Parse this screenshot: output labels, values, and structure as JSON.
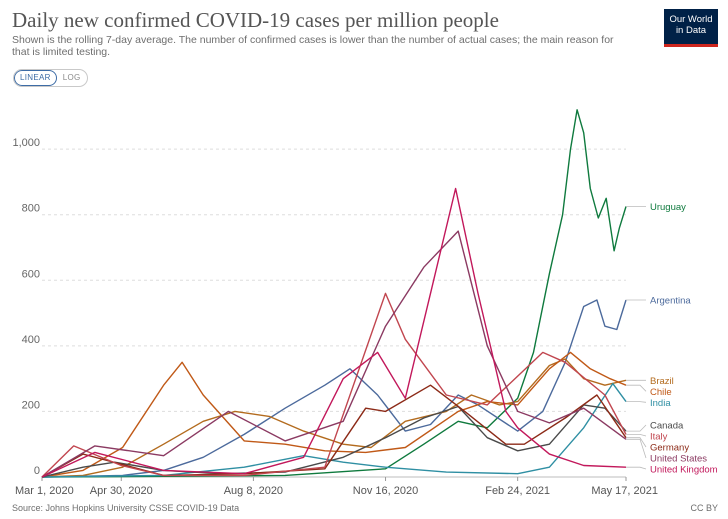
{
  "header": {
    "title": "Daily new confirmed COVID-19 cases per million people",
    "subtitle": "Shown is the rolling 7-day average. The number of confirmed cases is lower than the number of actual cases; the main reason for that is limited testing."
  },
  "logo": {
    "line1": "Our World",
    "line2": "in Data",
    "bg": "#002147",
    "accent": "#ce261e"
  },
  "scale_toggle": {
    "options": [
      "LINEAR",
      "LOG"
    ],
    "selected": "LINEAR"
  },
  "footer": {
    "source": "Source: Johns Hopkins University CSSE COVID-19 Data",
    "license": "CC BY"
  },
  "chart_data": {
    "type": "line",
    "title": "Daily new confirmed COVID-19 cases per million people",
    "subtitle": "Shown is the rolling 7-day average. The number of confirmed cases is lower than the number of actual cases; the main reason for that is limited testing.",
    "xlabel": "",
    "ylabel": "",
    "x_range": [
      "2020-03-01",
      "2021-05-17"
    ],
    "ylim": [
      0,
      1150
    ],
    "x_ticks": [
      {
        "date": "2020-03-01",
        "label": "Mar 1, 2020"
      },
      {
        "date": "2020-04-30",
        "label": "Apr 30, 2020"
      },
      {
        "date": "2020-08-08",
        "label": "Aug 8, 2020"
      },
      {
        "date": "2020-11-16",
        "label": "Nov 16, 2020"
      },
      {
        "date": "2021-02-24",
        "label": "Feb 24, 2021"
      },
      {
        "date": "2021-05-17",
        "label": "May 17, 2021"
      }
    ],
    "y_ticks": [
      0,
      200,
      400,
      600,
      800,
      1000
    ],
    "y_tick_labels": [
      "0",
      "200",
      "400",
      "600",
      "800",
      "1,000"
    ],
    "grid": "horizontal dashed",
    "legend": "labels at right end of lines",
    "series": [
      {
        "name": "Uruguay",
        "color": "#0f7a3e",
        "points": [
          [
            "2020-03-01",
            0
          ],
          [
            "2020-06-01",
            2
          ],
          [
            "2020-09-01",
            5
          ],
          [
            "2020-11-16",
            25
          ],
          [
            "2020-12-15",
            100
          ],
          [
            "2021-01-10",
            170
          ],
          [
            "2021-02-01",
            150
          ],
          [
            "2021-02-24",
            240
          ],
          [
            "2021-03-08",
            380
          ],
          [
            "2021-03-20",
            620
          ],
          [
            "2021-03-30",
            800
          ],
          [
            "2021-04-05",
            1000
          ],
          [
            "2021-04-10",
            1120
          ],
          [
            "2021-04-15",
            1050
          ],
          [
            "2021-04-20",
            880
          ],
          [
            "2021-04-26",
            790
          ],
          [
            "2021-05-02",
            850
          ],
          [
            "2021-05-08",
            690
          ],
          [
            "2021-05-12",
            760
          ],
          [
            "2021-05-17",
            825
          ]
        ]
      },
      {
        "name": "Argentina",
        "color": "#4c6a9c",
        "points": [
          [
            "2020-03-01",
            0
          ],
          [
            "2020-05-01",
            5
          ],
          [
            "2020-06-01",
            20
          ],
          [
            "2020-07-01",
            60
          ],
          [
            "2020-08-01",
            130
          ],
          [
            "2020-09-01",
            210
          ],
          [
            "2020-10-01",
            280
          ],
          [
            "2020-10-20",
            330
          ],
          [
            "2020-11-10",
            250
          ],
          [
            "2020-12-01",
            140
          ],
          [
            "2020-12-20",
            160
          ],
          [
            "2021-01-10",
            250
          ],
          [
            "2021-01-25",
            220
          ],
          [
            "2021-02-24",
            140
          ],
          [
            "2021-03-15",
            200
          ],
          [
            "2021-04-01",
            350
          ],
          [
            "2021-04-15",
            520
          ],
          [
            "2021-04-25",
            540
          ],
          [
            "2021-05-01",
            460
          ],
          [
            "2021-05-10",
            450
          ],
          [
            "2021-05-17",
            540
          ]
        ]
      },
      {
        "name": "Brazil",
        "color": "#b36b1e",
        "points": [
          [
            "2020-03-01",
            0
          ],
          [
            "2020-04-01",
            5
          ],
          [
            "2020-05-01",
            30
          ],
          [
            "2020-06-01",
            100
          ],
          [
            "2020-07-01",
            170
          ],
          [
            "2020-07-25",
            200
          ],
          [
            "2020-08-20",
            185
          ],
          [
            "2020-09-15",
            140
          ],
          [
            "2020-10-15",
            100
          ],
          [
            "2020-11-05",
            90
          ],
          [
            "2020-12-01",
            170
          ],
          [
            "2021-01-01",
            200
          ],
          [
            "2021-01-20",
            250
          ],
          [
            "2021-02-10",
            220
          ],
          [
            "2021-02-24",
            230
          ],
          [
            "2021-03-20",
            340
          ],
          [
            "2021-04-01",
            360
          ],
          [
            "2021-04-15",
            300
          ],
          [
            "2021-05-01",
            280
          ],
          [
            "2021-05-17",
            295
          ]
        ]
      },
      {
        "name": "Chile",
        "color": "#c05917",
        "points": [
          [
            "2020-03-01",
            0
          ],
          [
            "2020-04-01",
            20
          ],
          [
            "2020-05-01",
            90
          ],
          [
            "2020-06-01",
            280
          ],
          [
            "2020-06-15",
            350
          ],
          [
            "2020-07-01",
            250
          ],
          [
            "2020-08-01",
            110
          ],
          [
            "2020-09-01",
            100
          ],
          [
            "2020-10-01",
            80
          ],
          [
            "2020-11-01",
            75
          ],
          [
            "2020-12-01",
            90
          ],
          [
            "2021-01-10",
            200
          ],
          [
            "2021-02-01",
            230
          ],
          [
            "2021-02-24",
            220
          ],
          [
            "2021-03-20",
            330
          ],
          [
            "2021-04-05",
            380
          ],
          [
            "2021-04-20",
            330
          ],
          [
            "2021-05-05",
            300
          ],
          [
            "2021-05-17",
            280
          ]
        ]
      },
      {
        "name": "India",
        "color": "#2f8fa3",
        "points": [
          [
            "2020-03-01",
            0
          ],
          [
            "2020-06-01",
            5
          ],
          [
            "2020-08-01",
            30
          ],
          [
            "2020-09-15",
            65
          ],
          [
            "2020-10-15",
            45
          ],
          [
            "2020-11-16",
            30
          ],
          [
            "2021-01-01",
            15
          ],
          [
            "2021-02-24",
            10
          ],
          [
            "2021-03-20",
            30
          ],
          [
            "2021-04-15",
            150
          ],
          [
            "2021-05-07",
            285
          ],
          [
            "2021-05-17",
            230
          ]
        ]
      },
      {
        "name": "Canada",
        "color": "#4a4a4a",
        "points": [
          [
            "2020-03-01",
            0
          ],
          [
            "2020-04-01",
            30
          ],
          [
            "2020-04-25",
            45
          ],
          [
            "2020-06-01",
            20
          ],
          [
            "2020-07-15",
            10
          ],
          [
            "2020-09-01",
            15
          ],
          [
            "2020-10-15",
            60
          ],
          [
            "2020-11-16",
            120
          ],
          [
            "2020-12-15",
            180
          ],
          [
            "2021-01-10",
            215
          ],
          [
            "2021-02-01",
            120
          ],
          [
            "2021-02-24",
            80
          ],
          [
            "2021-03-20",
            100
          ],
          [
            "2021-04-15",
            220
          ],
          [
            "2021-05-01",
            210
          ],
          [
            "2021-05-17",
            140
          ]
        ]
      },
      {
        "name": "Germany",
        "color": "#8c2a17",
        "points": [
          [
            "2020-03-01",
            0
          ],
          [
            "2020-04-01",
            70
          ],
          [
            "2020-04-15",
            55
          ],
          [
            "2020-06-01",
            5
          ],
          [
            "2020-08-01",
            10
          ],
          [
            "2020-10-01",
            25
          ],
          [
            "2020-11-01",
            210
          ],
          [
            "2020-11-16",
            200
          ],
          [
            "2020-12-20",
            280
          ],
          [
            "2021-01-15",
            200
          ],
          [
            "2021-02-15",
            100
          ],
          [
            "2021-03-01",
            100
          ],
          [
            "2021-04-01",
            180
          ],
          [
            "2021-04-25",
            250
          ],
          [
            "2021-05-17",
            120
          ]
        ]
      },
      {
        "name": "Italy",
        "color": "#c1464f",
        "points": [
          [
            "2020-03-01",
            0
          ],
          [
            "2020-03-25",
            95
          ],
          [
            "2020-04-30",
            35
          ],
          [
            "2020-06-01",
            5
          ],
          [
            "2020-08-01",
            5
          ],
          [
            "2020-10-01",
            30
          ],
          [
            "2020-11-16",
            560
          ],
          [
            "2020-12-01",
            420
          ],
          [
            "2021-01-01",
            250
          ],
          [
            "2021-02-01",
            220
          ],
          [
            "2021-03-15",
            380
          ],
          [
            "2021-04-01",
            350
          ],
          [
            "2021-05-01",
            250
          ],
          [
            "2021-05-17",
            130
          ]
        ]
      },
      {
        "name": "United States",
        "color": "#8b3a62",
        "points": [
          [
            "2020-03-01",
            0
          ],
          [
            "2020-04-10",
            95
          ],
          [
            "2020-06-01",
            65
          ],
          [
            "2020-07-20",
            200
          ],
          [
            "2020-09-01",
            110
          ],
          [
            "2020-10-15",
            170
          ],
          [
            "2020-11-16",
            460
          ],
          [
            "2020-12-15",
            640
          ],
          [
            "2021-01-10",
            750
          ],
          [
            "2021-02-01",
            400
          ],
          [
            "2021-02-24",
            200
          ],
          [
            "2021-03-20",
            165
          ],
          [
            "2021-04-15",
            210
          ],
          [
            "2021-05-17",
            115
          ]
        ]
      },
      {
        "name": "United Kingdom",
        "color": "#c2185b",
        "points": [
          [
            "2020-03-01",
            0
          ],
          [
            "2020-04-10",
            75
          ],
          [
            "2020-06-01",
            20
          ],
          [
            "2020-08-01",
            10
          ],
          [
            "2020-09-15",
            60
          ],
          [
            "2020-10-15",
            300
          ],
          [
            "2020-11-10",
            380
          ],
          [
            "2020-12-01",
            240
          ],
          [
            "2020-12-20",
            560
          ],
          [
            "2021-01-08",
            880
          ],
          [
            "2021-01-25",
            560
          ],
          [
            "2021-02-15",
            200
          ],
          [
            "2021-02-24",
            150
          ],
          [
            "2021-03-20",
            70
          ],
          [
            "2021-04-15",
            35
          ],
          [
            "2021-05-17",
            30
          ]
        ]
      }
    ],
    "end_labels": [
      {
        "name": "Uruguay",
        "color": "#0f7a3e"
      },
      {
        "name": "Argentina",
        "color": "#4c6a9c"
      },
      {
        "name": "Brazil",
        "color": "#b36b1e"
      },
      {
        "name": "Chile",
        "color": "#c05917"
      },
      {
        "name": "India",
        "color": "#2f8fa3"
      },
      {
        "name": "Canada",
        "color": "#4a4a4a"
      },
      {
        "name": "Germany",
        "color": "#8c2a17"
      },
      {
        "name": "Italy",
        "color": "#c1464f"
      },
      {
        "name": "United States",
        "color": "#8b3a62"
      },
      {
        "name": "United Kingdom",
        "color": "#c2185b"
      }
    ]
  }
}
